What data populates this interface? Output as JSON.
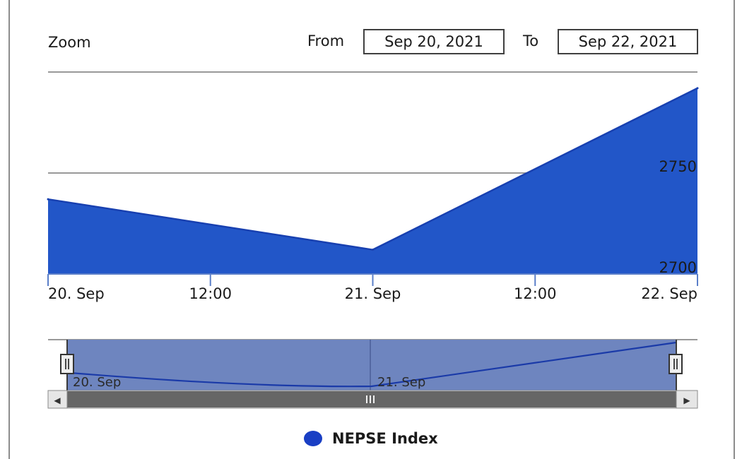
{
  "range_selector": {
    "zoom_label": "Zoom",
    "from_label": "From",
    "from_value": "Sep 20, 2021",
    "to_label": "To",
    "to_value": "Sep 22, 2021"
  },
  "chart_data": {
    "type": "area",
    "x": [
      "2021-09-20",
      "2021-09-21",
      "2021-09-22"
    ],
    "series": [
      {
        "name": "NEPSE Index",
        "values": [
          2737,
          2712,
          2792
        ]
      }
    ],
    "ylim": [
      2700,
      2800
    ],
    "y_ticks": [
      {
        "value": 2700,
        "label": "2700"
      },
      {
        "value": 2750,
        "label": "2750"
      }
    ],
    "x_ticks": [
      {
        "t": 0,
        "label": "20. Sep"
      },
      {
        "t": 0.5,
        "label": "12:00"
      },
      {
        "t": 1,
        "label": "21. Sep"
      },
      {
        "t": 1.5,
        "label": "12:00"
      },
      {
        "t": 2,
        "label": "22. Sep"
      }
    ],
    "navigator_labels": [
      {
        "t": 0,
        "label": "20. Sep"
      },
      {
        "t": 1,
        "label": "21. Sep"
      }
    ],
    "y_axis_side": "right",
    "grid": true,
    "legend_position": "bottom",
    "color": "#2256c8",
    "line_color": "#1840b0"
  },
  "legend": {
    "label": "NEPSE Index",
    "color": "#1a3fc4"
  },
  "scrollbar": {
    "left_arrow": "◀",
    "right_arrow": "▶"
  }
}
